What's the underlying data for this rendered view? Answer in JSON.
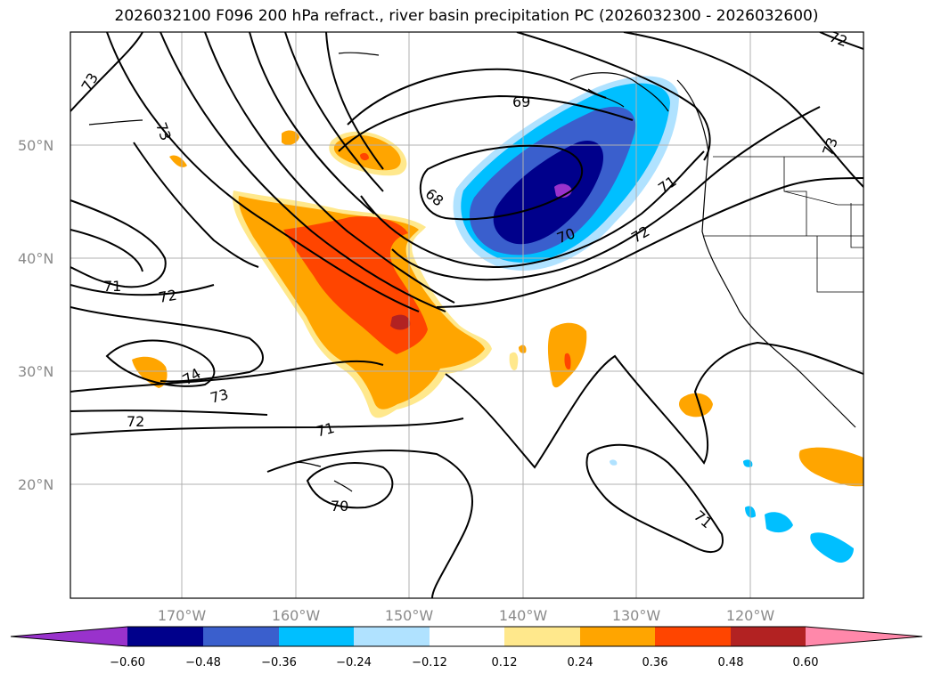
{
  "title": "2026032100 F096 200 hPa refract., river basin precipitation PC (2026032300 - 2026032600)",
  "lat_labels": [
    "50°N",
    "40°N",
    "30°N",
    "20°N"
  ],
  "lon_labels": [
    "170°W",
    "160°W",
    "150°W",
    "140°W",
    "130°W",
    "120°W"
  ],
  "contour_labels": [
    "73",
    "73",
    "69",
    "68",
    "71",
    "72",
    "70",
    "71",
    "72",
    "74",
    "73",
    "72",
    "71",
    "70",
    "71",
    "73",
    "72"
  ],
  "colorbar": {
    "tick_labels": [
      "−0.60",
      "−0.48",
      "−0.36",
      "−0.24",
      "−0.12",
      "0.12",
      "0.24",
      "0.36",
      "0.48",
      "0.60"
    ],
    "colors": [
      "#9932cc",
      "#00008b",
      "#3a5fcd",
      "#00bfff",
      "#b0e2ff",
      "#ffffff",
      "#ffe88c",
      "#ffa500",
      "#ff4500",
      "#b22222",
      "#ff88aa"
    ]
  }
}
